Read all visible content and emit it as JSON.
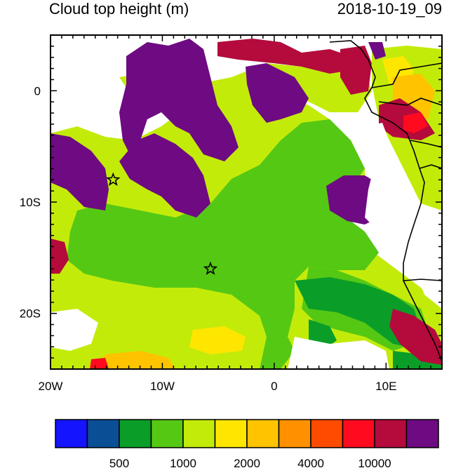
{
  "header": {
    "title": "Cloud top height (m)",
    "timestamp": "2018-10-19_09"
  },
  "map": {
    "lon_range": [
      -20,
      15
    ],
    "lat_range": [
      -25,
      5
    ],
    "x_ticks": [
      {
        "lon": -20,
        "label": "20W"
      },
      {
        "lon": -10,
        "label": "10W"
      },
      {
        "lon": 0,
        "label": "0"
      },
      {
        "lon": 10,
        "label": "10E"
      }
    ],
    "y_ticks": [
      {
        "lat": 0,
        "label": "0"
      },
      {
        "lat": -10,
        "label": "10S"
      },
      {
        "lat": -20,
        "label": "20S"
      }
    ],
    "markers": [
      {
        "lon": -14.4,
        "lat": -8.0,
        "symbol": "star"
      },
      {
        "lon": -5.7,
        "lat": -16.0,
        "symbol": "star"
      }
    ]
  },
  "colorbar": {
    "colors": [
      "#1414ff",
      "#0a4f96",
      "#0a9e28",
      "#55c814",
      "#c3eb0a",
      "#ffe600",
      "#ffc300",
      "#ff9100",
      "#ff4b00",
      "#ff0a1e",
      "#b40a3c",
      "#6e0a82"
    ],
    "labels": [
      {
        "index": 2,
        "text": "500"
      },
      {
        "index": 4,
        "text": "1000"
      },
      {
        "index": 6,
        "text": "2000"
      },
      {
        "index": 8,
        "text": "4000"
      },
      {
        "index": 10,
        "text": "10000"
      }
    ]
  }
}
